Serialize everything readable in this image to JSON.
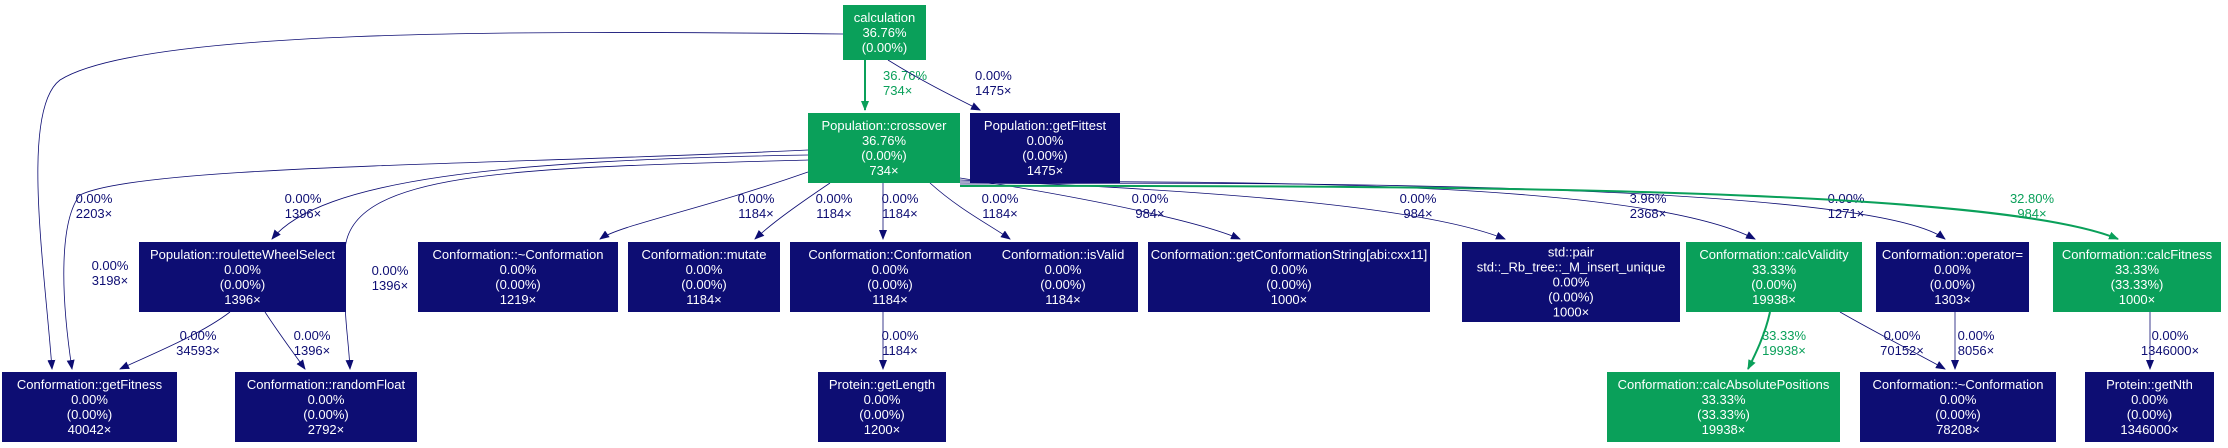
{
  "colors": {
    "hot": "#0aa05a",
    "cold": "#0d0d73",
    "node_text": "#ffffff"
  },
  "nodes": [
    {
      "id": "calculation",
      "lines": [
        "calculation",
        "36.76%",
        "(0.00%)"
      ],
      "color": "hot"
    },
    {
      "id": "crossover",
      "lines": [
        "Population::crossover",
        "36.76%",
        "(0.00%)",
        "734×"
      ],
      "color": "hot"
    },
    {
      "id": "getFittest",
      "lines": [
        "Population::getFittest",
        "0.00%",
        "(0.00%)",
        "1475×"
      ],
      "color": "cold"
    },
    {
      "id": "rouletteWheelSelect",
      "lines": [
        "Population::rouletteWheelSelect",
        "0.00%",
        "(0.00%)",
        "1396×"
      ],
      "color": "cold"
    },
    {
      "id": "dtorA",
      "lines": [
        "Conformation::~Conformation",
        "0.00%",
        "(0.00%)",
        "1219×"
      ],
      "color": "cold"
    },
    {
      "id": "mutate",
      "lines": [
        "Conformation::mutate",
        "0.00%",
        "(0.00%)",
        "1184×"
      ],
      "color": "cold"
    },
    {
      "id": "ctor",
      "lines": [
        "Conformation::Conformation",
        "0.00%",
        "(0.00%)",
        "1184×"
      ],
      "color": "cold"
    },
    {
      "id": "isValid",
      "lines": [
        "Conformation::isValid",
        "0.00%",
        "(0.00%)",
        "1184×"
      ],
      "color": "cold"
    },
    {
      "id": "getConfString",
      "lines": [
        "Conformation::getConformationString[abi:cxx11]",
        "0.00%",
        "(0.00%)",
        "1000×"
      ],
      "color": "cold"
    },
    {
      "id": "rbtree",
      "lines": [
        "std::pair",
        "std::_Rb_tree::_M_insert_unique",
        "0.00%",
        "(0.00%)",
        "1000×"
      ],
      "color": "cold"
    },
    {
      "id": "calcValidity",
      "lines": [
        "Conformation::calcValidity",
        "33.33%",
        "(0.00%)",
        "19938×"
      ],
      "color": "hot"
    },
    {
      "id": "operatorEq",
      "lines": [
        "Conformation::operator=",
        "0.00%",
        "(0.00%)",
        "1303×"
      ],
      "color": "cold"
    },
    {
      "id": "calcFitness",
      "lines": [
        "Conformation::calcFitness",
        "33.33%",
        "(33.33%)",
        "1000×"
      ],
      "color": "hot"
    },
    {
      "id": "getFitness",
      "lines": [
        "Conformation::getFitness",
        "0.00%",
        "(0.00%)",
        "40042×"
      ],
      "color": "cold"
    },
    {
      "id": "randomFloat",
      "lines": [
        "Conformation::randomFloat",
        "0.00%",
        "(0.00%)",
        "2792×"
      ],
      "color": "cold"
    },
    {
      "id": "getLength",
      "lines": [
        "Protein::getLength",
        "0.00%",
        "(0.00%)",
        "1200×"
      ],
      "color": "cold"
    },
    {
      "id": "calcAbsPos",
      "lines": [
        "Conformation::calcAbsolutePositions",
        "33.33%",
        "(33.33%)",
        "19938×"
      ],
      "color": "hot"
    },
    {
      "id": "dtorB",
      "lines": [
        "Conformation::~Conformation",
        "0.00%",
        "(0.00%)",
        "78208×"
      ],
      "color": "cold"
    },
    {
      "id": "getNth",
      "lines": [
        "Protein::getNth",
        "0.00%",
        "(0.00%)",
        "1346000×"
      ],
      "color": "cold"
    }
  ],
  "edges": [
    {
      "id": "calc-crossover",
      "from": "calculation",
      "to": "crossover",
      "label": [
        "36.76%",
        "734×"
      ],
      "color": "hot"
    },
    {
      "id": "calc-getFittest",
      "from": "calculation",
      "to": "getFittest",
      "label": [
        "0.00%",
        "1475×"
      ],
      "color": "cold"
    },
    {
      "id": "calc-getFitness",
      "from": "calculation",
      "to": "getFitness",
      "label": [
        "0.00%",
        "2203×"
      ],
      "color": "cold"
    },
    {
      "id": "cross-getFitness",
      "from": "crossover",
      "to": "getFitness",
      "label": [
        "0.00%",
        "3198×"
      ],
      "color": "cold"
    },
    {
      "id": "cross-roulette",
      "from": "crossover",
      "to": "rouletteWheelSelect",
      "label": [
        "0.00%",
        "1396×"
      ],
      "color": "cold"
    },
    {
      "id": "cross-randomFloat",
      "from": "crossover",
      "to": "randomFloat",
      "label": [
        "0.00%",
        "1396×"
      ],
      "color": "cold"
    },
    {
      "id": "cross-dtorA",
      "from": "crossover",
      "to": "dtorA",
      "label": [
        "0.00%",
        "1184×"
      ],
      "color": "cold"
    },
    {
      "id": "cross-mutate",
      "from": "crossover",
      "to": "mutate",
      "label": [
        "0.00%",
        "1184×"
      ],
      "color": "cold"
    },
    {
      "id": "cross-ctor",
      "from": "crossover",
      "to": "ctor",
      "label": [
        "0.00%",
        "1184×"
      ],
      "color": "cold"
    },
    {
      "id": "cross-isValid",
      "from": "crossover",
      "to": "isValid",
      "label": [
        "0.00%",
        "1184×"
      ],
      "color": "cold"
    },
    {
      "id": "cross-getConfString",
      "from": "crossover",
      "to": "getConfString",
      "label": [
        "0.00%",
        "984×"
      ],
      "color": "cold"
    },
    {
      "id": "cross-rbtree",
      "from": "crossover",
      "to": "rbtree",
      "label": [
        "0.00%",
        "984×"
      ],
      "color": "cold"
    },
    {
      "id": "cross-calcValidity",
      "from": "crossover",
      "to": "calcValidity",
      "label": [
        "3.96%",
        "2368×"
      ],
      "color": "cold"
    },
    {
      "id": "cross-operatorEq",
      "from": "crossover",
      "to": "operatorEq",
      "label": [
        "0.00%",
        "1271×"
      ],
      "color": "cold"
    },
    {
      "id": "cross-calcFitness",
      "from": "crossover",
      "to": "calcFitness",
      "label": [
        "32.80%",
        "984×"
      ],
      "color": "hot"
    },
    {
      "id": "roulette-getFitness",
      "from": "rouletteWheelSelect",
      "to": "getFitness",
      "label": [
        "0.00%",
        "34593×"
      ],
      "color": "cold"
    },
    {
      "id": "roulette-randomFloat",
      "from": "rouletteWheelSelect",
      "to": "randomFloat",
      "label": [
        "0.00%",
        "1396×"
      ],
      "color": "cold"
    },
    {
      "id": "ctor-getLength",
      "from": "ctor",
      "to": "getLength",
      "label": [
        "0.00%",
        "1184×"
      ],
      "color": "cold"
    },
    {
      "id": "calcValidity-calcAbsPos",
      "from": "calcValidity",
      "to": "calcAbsPos",
      "label": [
        "33.33%",
        "19938×"
      ],
      "color": "hot"
    },
    {
      "id": "calcValidity-dtorB",
      "from": "calcValidity",
      "to": "dtorB",
      "label": [
        "0.00%",
        "70152×"
      ],
      "color": "cold"
    },
    {
      "id": "operatorEq-dtorB",
      "from": "operatorEq",
      "to": "dtorB",
      "label": [
        "0.00%",
        "8056×"
      ],
      "color": "cold"
    },
    {
      "id": "calcFitness-getNth",
      "from": "calcFitness",
      "to": "getNth",
      "label": [
        "0.00%",
        "1346000×"
      ],
      "color": "cold"
    }
  ]
}
